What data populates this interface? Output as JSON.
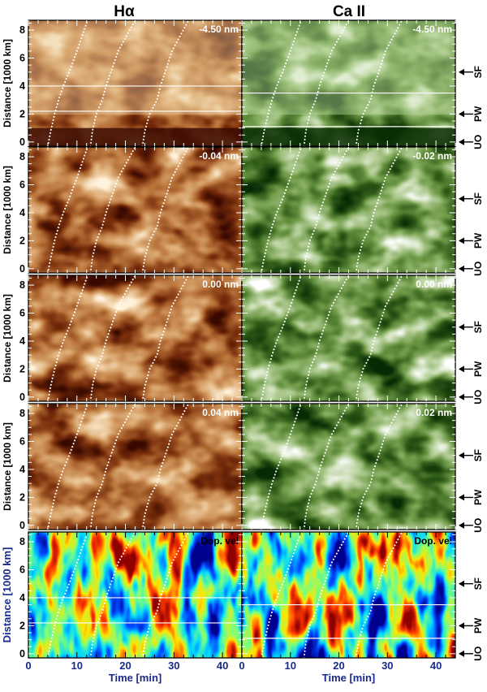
{
  "columns": [
    {
      "title": "Hα",
      "key": "halpha"
    },
    {
      "title": "Ca II",
      "key": "ca"
    }
  ],
  "y_axis": {
    "label": "Distance [1000 km]",
    "ticks": [
      0,
      2,
      4,
      6,
      8
    ],
    "range": [
      -0.3,
      8.7
    ]
  },
  "x_axis": {
    "label": "Time [min]",
    "ticks": [
      0,
      10,
      20,
      30,
      40
    ],
    "range": [
      0,
      44
    ]
  },
  "right_markers": [
    {
      "label": "SF",
      "value": 5.0
    },
    {
      "label": "PW",
      "value": 2.0
    },
    {
      "label": "UO",
      "value": 0.0
    }
  ],
  "rows": [
    {
      "halpha": "-4.50 nm",
      "ca": "-4.50 nm",
      "type": "continuum"
    },
    {
      "halpha": "-0.04 nm",
      "ca": "-0.02 nm",
      "type": "line"
    },
    {
      "halpha": "0.00 nm",
      "ca": "0.00 nm",
      "type": "line"
    },
    {
      "halpha": "0.04 nm",
      "ca": "0.02 nm",
      "type": "line"
    },
    {
      "halpha": "Dop. vel",
      "ca": "Dop. vel",
      "type": "velocity"
    }
  ],
  "colors": {
    "halpha_dark": "#3a0a00",
    "halpha_light": "#fff3dc",
    "ca_dark": "#062a04",
    "ca_light": "#ffffff",
    "velocity_map": "jet"
  },
  "chart_data": {
    "type": "heatmap",
    "title": "",
    "xlabel": "Time [min]",
    "ylabel": "Distance [1000 km]",
    "xlim": [
      0,
      44
    ],
    "ylim": [
      -0.3,
      8.7
    ],
    "panels": [
      [
        "Hα -4.50 nm",
        "Ca II -4.50 nm"
      ],
      [
        "Hα -0.04 nm",
        "Ca II -0.02 nm"
      ],
      [
        "Hα 0.00 nm",
        "Ca II 0.00 nm"
      ],
      [
        "Hα 0.04 nm",
        "Ca II 0.02 nm"
      ],
      [
        "Hα Dop. vel",
        "Ca II Dop. vel"
      ]
    ],
    "series": [
      {
        "x": [
          4,
          4.6,
          5.4,
          6.2,
          7.2,
          8.4,
          10.0,
          12.2
        ],
        "y": [
          -0.3,
          0.8,
          2.0,
          3.0,
          4.0,
          5.0,
          6.5,
          8.7
        ]
      },
      {
        "x": [
          12.8,
          13.2,
          14.0,
          15.2,
          16.0,
          17.0,
          18.5,
          22.0
        ],
        "y": [
          -0.3,
          0.8,
          2.0,
          3.0,
          4.0,
          5.0,
          6.5,
          8.7
        ]
      },
      {
        "x": [
          23.5,
          24.0,
          25.0,
          26.5,
          27.2,
          28.2,
          29.6,
          33.0
        ],
        "y": [
          -0.3,
          0.8,
          2.0,
          3.0,
          4.0,
          5.0,
          6.5,
          8.7
        ]
      }
    ],
    "horizontal_lines": {
      "halpha": [
        4.0,
        2.2
      ],
      "ca": [
        3.5,
        1.1
      ]
    }
  }
}
